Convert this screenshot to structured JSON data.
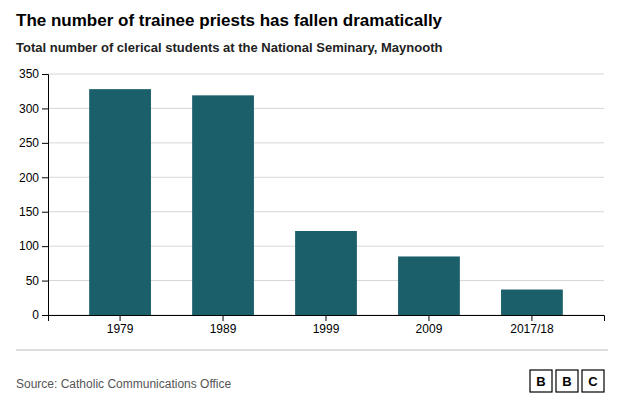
{
  "chart_data": {
    "type": "bar",
    "title": "The number of trainee priests has fallen dramatically",
    "subtitle": "Total number of clerical students at the National Seminary, Maynooth",
    "categories": [
      "1979",
      "1989",
      "1999",
      "2009",
      "2017/18"
    ],
    "values": [
      328,
      319,
      122,
      85,
      37
    ],
    "color": "#1a5f6a",
    "ylim": [
      0,
      350
    ],
    "yticks": [
      0,
      50,
      100,
      150,
      200,
      250,
      300,
      350
    ],
    "grid": true,
    "source": "Source: Catholic Communications Office",
    "logo": [
      "B",
      "B",
      "C"
    ]
  }
}
